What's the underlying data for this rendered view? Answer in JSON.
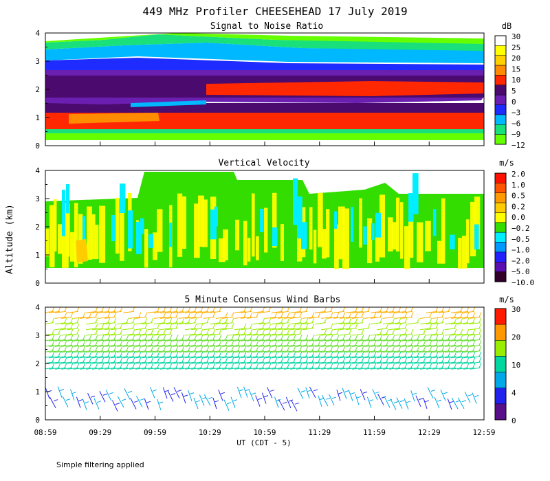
{
  "title": "449 MHz Profiler CHEESEHEAD 17 July 2019",
  "ylabel": "Altitude (km)",
  "xlabel": "UT (CDT - 5)",
  "footnote": "Simple filtering applied",
  "x_ticks": [
    "08:59",
    "09:29",
    "09:59",
    "10:29",
    "10:59",
    "11:29",
    "11:59",
    "12:29",
    "12:59"
  ],
  "y_ticks": [
    "0",
    "1",
    "2",
    "3",
    "4"
  ],
  "chart_data": [
    {
      "type": "heatmap",
      "title": "Signal to Noise Ratio",
      "unit": "dB",
      "x_range": [
        "08:59",
        "12:59"
      ],
      "ylim": [
        0,
        4
      ],
      "legend_levels": [
        "30",
        "25",
        "20",
        "15",
        "10",
        "5",
        "0",
        "−3",
        "−6",
        "−9",
        "−12"
      ],
      "legend_colors": [
        "#ffffff",
        "#ffff00",
        "#ffd000",
        "#ff8c00",
        "#ff2800",
        "#4a0a6e",
        "#6a1fb0",
        "#1e2cff",
        "#00b8ff",
        "#19e07a",
        "#66ff00"
      ],
      "profile": [
        {
          "alt": 0.35,
          "value": -12
        },
        {
          "alt": 0.6,
          "value": -9
        },
        {
          "alt": 0.85,
          "value": 15
        },
        {
          "alt": 1.2,
          "value": 0
        },
        {
          "alt": 1.5,
          "value": -3
        },
        {
          "alt": 1.9,
          "value": 5
        },
        {
          "alt": 2.25,
          "value": 10
        },
        {
          "alt": 2.6,
          "value": 0
        },
        {
          "alt": 2.9,
          "value": -6
        },
        {
          "alt": 3.2,
          "value": -9
        },
        {
          "alt": 3.5,
          "value": -12
        }
      ]
    },
    {
      "type": "heatmap",
      "title": "Vertical Velocity",
      "unit": "m/s",
      "x_range": [
        "08:59",
        "12:59"
      ],
      "ylim": [
        0,
        4
      ],
      "legend_levels": [
        "2.0",
        "1.0",
        "0.5",
        "0.2",
        "0.0",
        "−0.2",
        "−0.5",
        "−1.0",
        "−2.0",
        "−5.0",
        "−10.0"
      ],
      "legend_colors": [
        "#ff1000",
        "#ff5500",
        "#ff9900",
        "#ffcc00",
        "#ffff00",
        "#33dd00",
        "#00eeff",
        "#0099ff",
        "#2222ff",
        "#5a0fb0",
        "#30002a"
      ],
      "data_alt_range": [
        0.5,
        3.2
      ]
    },
    {
      "type": "scatter",
      "title": "5 Minute Consensus Wind Barbs",
      "unit": "m/s",
      "x_range": [
        "08:59",
        "12:59"
      ],
      "ylim": [
        0,
        4
      ],
      "legend_levels": [
        "30",
        "20",
        "10",
        "4",
        "0"
      ],
      "legend_colors": [
        "#ff1a00",
        "#ff9900",
        "#99ee00",
        "#00d6a0",
        "#00a8e8",
        "#2222ee",
        "#5a0f8a"
      ],
      "speed_profile": [
        {
          "alt": 0.5,
          "speed": 5
        },
        {
          "alt": 1.9,
          "speed": 7
        },
        {
          "alt": 2.3,
          "speed": 9
        },
        {
          "alt": 3.0,
          "speed": 12
        },
        {
          "alt": 3.8,
          "speed": 18
        }
      ]
    }
  ]
}
